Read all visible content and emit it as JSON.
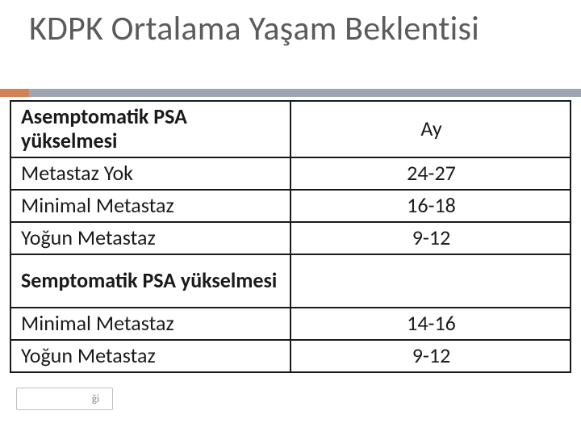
{
  "title": "KDPK Ortalama Yaşam Beklentisi",
  "accent_color": "#d38156",
  "underline_color": "#9fa6b3",
  "title_color": "#5b5b5b",
  "table": {
    "border_color": "#1a1a1a",
    "columns": [
      {
        "width_pct": 50,
        "align": "left"
      },
      {
        "width_pct": 50,
        "align": "center"
      }
    ],
    "rows": [
      {
        "type": "header",
        "cells": [
          {
            "text": "Asemptomatik PSA yükselmesi",
            "bold": true
          },
          {
            "text": "Ay",
            "bold": false
          }
        ]
      },
      {
        "type": "single",
        "cells": [
          {
            "text": "Metastaz Yok",
            "bold": false
          },
          {
            "text": "24-27",
            "bold": false
          }
        ]
      },
      {
        "type": "single",
        "cells": [
          {
            "text": "Minimal Metastaz",
            "bold": false
          },
          {
            "text": "16-18",
            "bold": false
          }
        ]
      },
      {
        "type": "single",
        "cells": [
          {
            "text": "Yoğun Metastaz",
            "bold": false
          },
          {
            "text": "9-12",
            "bold": false
          }
        ]
      },
      {
        "type": "section",
        "cells": [
          {
            "text": "Semptomatik PSA yükselmesi",
            "bold": true
          },
          {
            "text": "",
            "bold": false
          }
        ]
      },
      {
        "type": "single",
        "cells": [
          {
            "text": "Minimal Metastaz",
            "bold": false
          },
          {
            "text": "14-16",
            "bold": false
          }
        ]
      },
      {
        "type": "single",
        "cells": [
          {
            "text": "Yoğun Metastaz",
            "bold": false
          },
          {
            "text": "9-12",
            "bold": false
          }
        ]
      }
    ],
    "cell_fontsize": 26,
    "cell_text_color": "#1a1a1a",
    "background_color": "#ffffff"
  },
  "footer_fragment": "ği"
}
